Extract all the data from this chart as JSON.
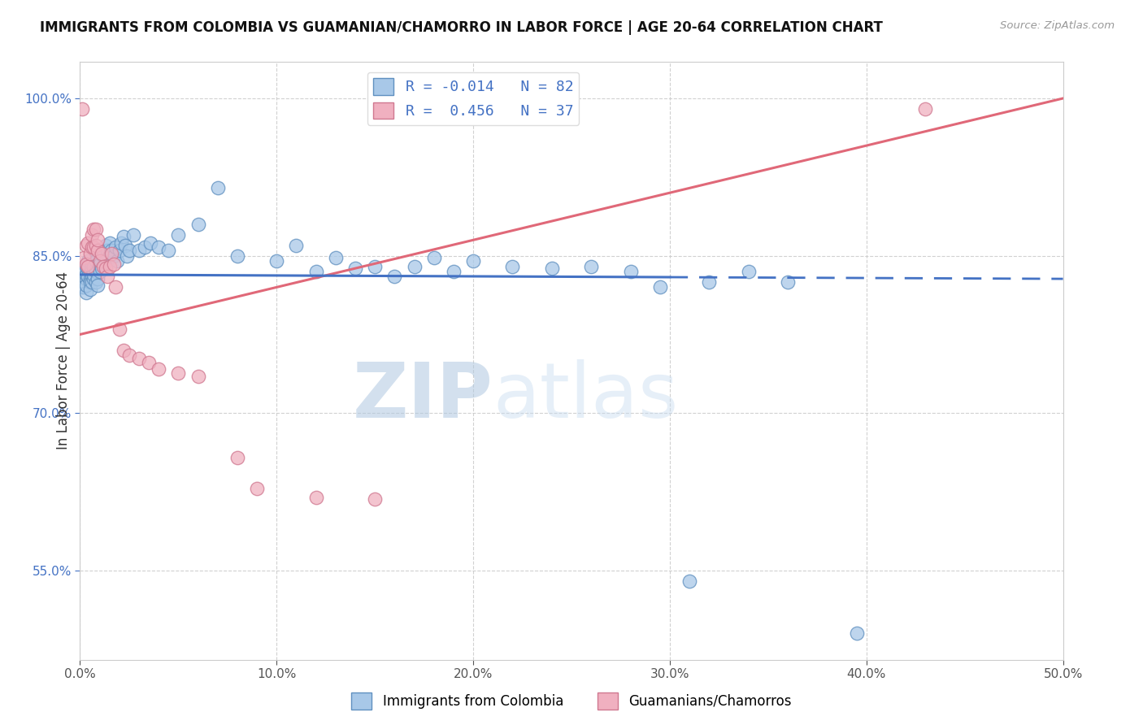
{
  "title": "IMMIGRANTS FROM COLOMBIA VS GUAMANIAN/CHAMORRO IN LABOR FORCE | AGE 20-64 CORRELATION CHART",
  "source": "Source: ZipAtlas.com",
  "ylabel": "In Labor Force | Age 20-64",
  "xlim": [
    0.0,
    0.5
  ],
  "ylim": [
    0.465,
    1.035
  ],
  "xticks": [
    0.0,
    0.1,
    0.2,
    0.3,
    0.4,
    0.5
  ],
  "yticks": [
    0.55,
    0.7,
    0.85,
    1.0
  ],
  "blue_fill": "#A8C8E8",
  "blue_edge": "#6090C0",
  "pink_fill": "#F0B0C0",
  "pink_edge": "#D07890",
  "blue_line": "#4472C4",
  "pink_line": "#E06878",
  "R_blue": -0.014,
  "N_blue": 82,
  "R_pink": 0.456,
  "N_pink": 37,
  "label_blue": "Immigrants from Colombia",
  "label_pink": "Guamanians/Chamorros",
  "watermark_zip": "ZIP",
  "watermark_atlas": "atlas",
  "blue_line_solid_end": 0.3,
  "blue_x": [
    0.001,
    0.001,
    0.001,
    0.002,
    0.002,
    0.002,
    0.002,
    0.002,
    0.003,
    0.003,
    0.003,
    0.003,
    0.003,
    0.004,
    0.004,
    0.004,
    0.004,
    0.005,
    0.005,
    0.005,
    0.005,
    0.006,
    0.006,
    0.006,
    0.006,
    0.007,
    0.007,
    0.007,
    0.007,
    0.008,
    0.008,
    0.008,
    0.009,
    0.009,
    0.01,
    0.01,
    0.011,
    0.012,
    0.013,
    0.014,
    0.015,
    0.016,
    0.017,
    0.018,
    0.019,
    0.02,
    0.021,
    0.022,
    0.023,
    0.024,
    0.025,
    0.027,
    0.03,
    0.033,
    0.036,
    0.04,
    0.045,
    0.05,
    0.06,
    0.07,
    0.08,
    0.1,
    0.11,
    0.12,
    0.13,
    0.14,
    0.15,
    0.16,
    0.17,
    0.18,
    0.19,
    0.2,
    0.22,
    0.24,
    0.26,
    0.28,
    0.295,
    0.31,
    0.32,
    0.34,
    0.36,
    0.395
  ],
  "blue_y": [
    0.832,
    0.828,
    0.82,
    0.825,
    0.83,
    0.835,
    0.84,
    0.82,
    0.828,
    0.832,
    0.815,
    0.84,
    0.822,
    0.838,
    0.842,
    0.83,
    0.845,
    0.835,
    0.828,
    0.825,
    0.818,
    0.83,
    0.838,
    0.842,
    0.825,
    0.835,
    0.828,
    0.84,
    0.832,
    0.825,
    0.835,
    0.845,
    0.828,
    0.822,
    0.835,
    0.842,
    0.838,
    0.85,
    0.86,
    0.855,
    0.862,
    0.855,
    0.85,
    0.858,
    0.845,
    0.855,
    0.862,
    0.868,
    0.86,
    0.85,
    0.855,
    0.87,
    0.855,
    0.858,
    0.862,
    0.858,
    0.855,
    0.87,
    0.88,
    0.915,
    0.85,
    0.845,
    0.86,
    0.835,
    0.848,
    0.838,
    0.84,
    0.83,
    0.84,
    0.848,
    0.835,
    0.845,
    0.84,
    0.838,
    0.84,
    0.835,
    0.82,
    0.54,
    0.825,
    0.835,
    0.825,
    0.49
  ],
  "pink_x": [
    0.001,
    0.002,
    0.003,
    0.003,
    0.004,
    0.004,
    0.005,
    0.006,
    0.006,
    0.007,
    0.007,
    0.008,
    0.008,
    0.009,
    0.009,
    0.01,
    0.011,
    0.012,
    0.013,
    0.014,
    0.015,
    0.016,
    0.017,
    0.018,
    0.02,
    0.022,
    0.025,
    0.03,
    0.035,
    0.04,
    0.05,
    0.06,
    0.08,
    0.09,
    0.12,
    0.15,
    0.43
  ],
  "pink_y": [
    0.99,
    0.848,
    0.842,
    0.86,
    0.84,
    0.862,
    0.852,
    0.858,
    0.87,
    0.875,
    0.858,
    0.86,
    0.875,
    0.855,
    0.865,
    0.845,
    0.852,
    0.84,
    0.838,
    0.83,
    0.84,
    0.852,
    0.842,
    0.82,
    0.78,
    0.76,
    0.755,
    0.752,
    0.748,
    0.742,
    0.738,
    0.735,
    0.658,
    0.628,
    0.62,
    0.618,
    0.99
  ]
}
